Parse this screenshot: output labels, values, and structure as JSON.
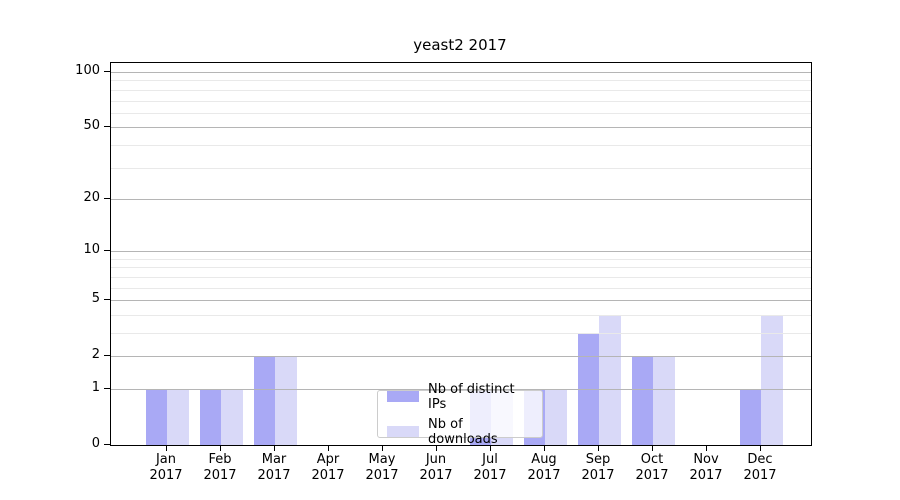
{
  "chart_data": {
    "type": "bar",
    "title": "yeast2 2017",
    "xlabel": "",
    "ylabel": "",
    "categories": [
      "Jan 2017",
      "Feb 2017",
      "Mar 2017",
      "Apr 2017",
      "May 2017",
      "Jun 2017",
      "Jul 2017",
      "Aug 2017",
      "Sep 2017",
      "Oct 2017",
      "Nov 2017",
      "Dec 2017"
    ],
    "series": [
      {
        "name": "Nb of distinct IPs",
        "color": "#a9a9f5",
        "values": [
          1,
          1,
          2,
          0,
          0,
          0,
          1,
          1,
          3,
          2,
          0,
          1
        ]
      },
      {
        "name": "Nb of downloads",
        "color": "#d9d9f8",
        "values": [
          1,
          1,
          2,
          0,
          0,
          0,
          1,
          1,
          4,
          2,
          0,
          4
        ]
      }
    ],
    "yscale": "log1p",
    "ylim": [
      0,
      112
    ],
    "yticks": [
      0,
      1,
      2,
      5,
      10,
      20,
      50,
      100
    ],
    "minor_yticks": [
      3,
      4,
      6,
      7,
      8,
      9,
      30,
      40,
      60,
      70,
      80,
      90
    ],
    "grid": true,
    "grid_on_top_of_bars": true,
    "legend_position": "lower center",
    "colors": {
      "major_grid": "#b5b5b5",
      "minor_grid": "#e9e9e9",
      "axis": "#000000",
      "text": "#000000",
      "background": "#ffffff",
      "legend_border": "#cccccc"
    }
  }
}
